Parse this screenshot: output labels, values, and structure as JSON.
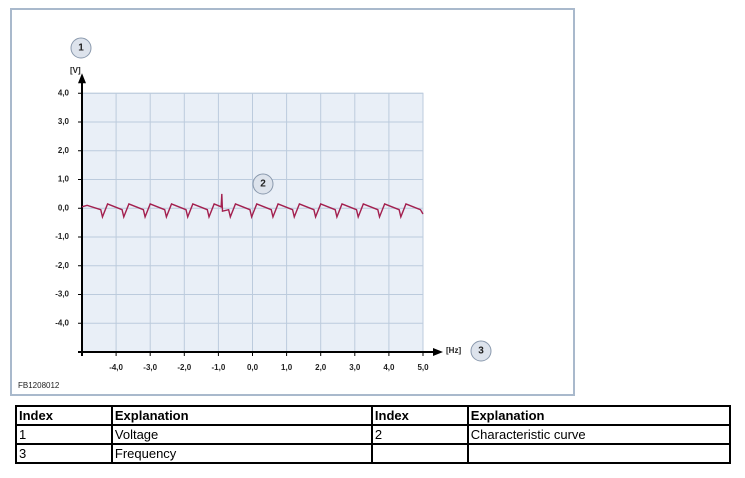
{
  "chart_data": {
    "type": "line",
    "x_label": "[Hz]",
    "y_label": "[V]",
    "figure_id": "FB1208012",
    "annotations": [
      "1",
      "2",
      "3"
    ],
    "x": [
      -5.0,
      -4.85,
      -4.45,
      -4.4,
      -4.25,
      -3.825,
      -3.775,
      -3.625,
      -3.2,
      -3.15,
      -3.0,
      -2.575,
      -2.525,
      -2.375,
      -1.95,
      -1.9,
      -1.75,
      -1.325,
      -1.275,
      -1.125,
      -0.92,
      -0.9,
      -0.88,
      -0.7,
      -0.65,
      -0.5,
      -0.075,
      -0.025,
      0.125,
      0.55,
      0.6,
      0.75,
      1.175,
      1.225,
      1.375,
      1.8,
      1.85,
      2.0,
      2.425,
      2.475,
      2.625,
      3.05,
      3.1,
      3.25,
      3.675,
      3.725,
      3.875,
      4.3,
      4.35,
      4.5,
      4.925,
      5.0
    ],
    "series": [
      {
        "color": "#a3204f",
        "values": [
          0.05,
          0.1,
          -0.05,
          -0.3,
          0.15,
          -0.05,
          -0.3,
          0.15,
          -0.05,
          -0.3,
          0.15,
          -0.05,
          -0.3,
          0.15,
          -0.05,
          -0.3,
          0.15,
          -0.05,
          -0.3,
          0.15,
          0.05,
          0.5,
          -0.1,
          -0.05,
          -0.3,
          0.15,
          -0.05,
          -0.3,
          0.15,
          -0.05,
          -0.3,
          0.15,
          -0.05,
          -0.3,
          0.15,
          -0.05,
          -0.3,
          0.15,
          -0.05,
          -0.3,
          0.15,
          -0.05,
          -0.3,
          0.15,
          -0.05,
          -0.3,
          0.15,
          -0.05,
          -0.3,
          0.15,
          -0.05,
          -0.2
        ]
      }
    ],
    "xlim": [
      -5,
      5
    ],
    "ylim": [
      -5,
      4
    ],
    "xticks": [
      {
        "value": -4,
        "label": "-4,0"
      },
      {
        "value": -3,
        "label": "-3,0"
      },
      {
        "value": -2,
        "label": "-2,0"
      },
      {
        "value": -1,
        "label": "-1,0"
      },
      {
        "value": 0,
        "label": "0,0"
      },
      {
        "value": 1,
        "label": "1,0"
      },
      {
        "value": 2,
        "label": "2,0"
      },
      {
        "value": 3,
        "label": "3,0"
      },
      {
        "value": 4,
        "label": "4,0"
      },
      {
        "value": 5,
        "label": "5,0"
      }
    ],
    "yticks": [
      {
        "value": 4,
        "label": "4,0"
      },
      {
        "value": 3,
        "label": "3,0"
      },
      {
        "value": 2,
        "label": "2,0"
      },
      {
        "value": 1,
        "label": "1,0"
      },
      {
        "value": 0,
        "label": "0,0"
      },
      {
        "value": -1,
        "label": "-1,0"
      },
      {
        "value": -2,
        "label": "-2,0"
      },
      {
        "value": -3,
        "label": "-3,0"
      },
      {
        "value": -4,
        "label": "-4,0"
      }
    ],
    "grid": true
  },
  "table": {
    "header": [
      "Index",
      "Explanation",
      "Index",
      "Explanation"
    ],
    "rows": [
      [
        "1",
        "Voltage",
        "2",
        "Characteristic curve"
      ],
      [
        "3",
        "Frequency",
        null,
        null
      ]
    ]
  }
}
